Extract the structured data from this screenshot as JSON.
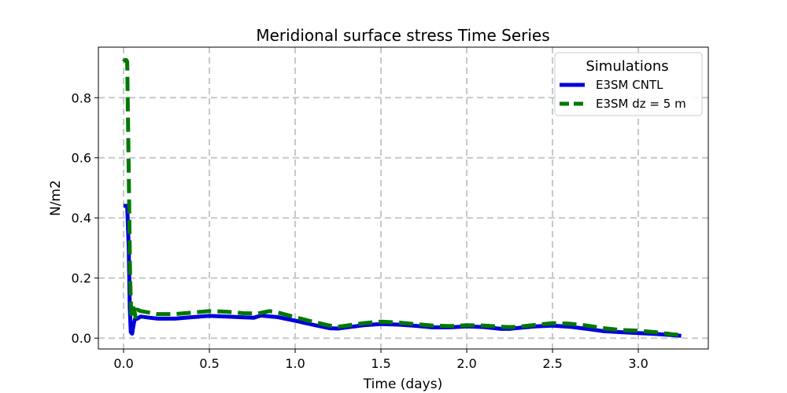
{
  "chart_data": {
    "type": "line",
    "title": "Meridional surface stress Time Series",
    "xlabel": "Time (days)",
    "ylabel": "N/m2",
    "xlim": [
      -0.147,
      3.408
    ],
    "ylim": [
      -0.036,
      0.968
    ],
    "xticks": [
      0.0,
      0.5,
      1.0,
      1.5,
      2.0,
      2.5,
      3.0
    ],
    "xtick_labels": [
      "0.0",
      "0.5",
      "1.0",
      "1.5",
      "2.0",
      "2.5",
      "3.0"
    ],
    "yticks": [
      0.0,
      0.2,
      0.4,
      0.6,
      0.8
    ],
    "ytick_labels": [
      "0.0",
      "0.2",
      "0.4",
      "0.6",
      "0.8"
    ],
    "grid": true,
    "legend": {
      "title": "Simulations",
      "position": "upper-right"
    },
    "series": [
      {
        "name": "E3SM CNTL",
        "color": "#0000dd",
        "style": "solid",
        "x": [
          0.0,
          0.021,
          0.03,
          0.036,
          0.042,
          0.05,
          0.06,
          0.07,
          0.08,
          0.1,
          0.15,
          0.2,
          0.3,
          0.4,
          0.5,
          0.6,
          0.7,
          0.76,
          0.8,
          0.9,
          1.0,
          1.1,
          1.2,
          1.25,
          1.3,
          1.4,
          1.5,
          1.6,
          1.7,
          1.8,
          1.9,
          2.0,
          2.1,
          2.2,
          2.25,
          2.3,
          2.4,
          2.5,
          2.6,
          2.7,
          2.8,
          2.9,
          3.0,
          3.1,
          3.2,
          3.25
        ],
        "values": [
          0.44,
          0.44,
          0.3,
          0.1,
          0.02,
          0.015,
          0.05,
          0.07,
          0.065,
          0.072,
          0.068,
          0.065,
          0.065,
          0.07,
          0.074,
          0.072,
          0.069,
          0.068,
          0.075,
          0.07,
          0.058,
          0.045,
          0.033,
          0.032,
          0.036,
          0.043,
          0.047,
          0.045,
          0.041,
          0.036,
          0.036,
          0.039,
          0.037,
          0.031,
          0.031,
          0.034,
          0.039,
          0.042,
          0.038,
          0.031,
          0.023,
          0.02,
          0.017,
          0.014,
          0.01,
          0.008
        ]
      },
      {
        "name": "E3SM dz = 5 m",
        "color": "#007800",
        "style": "dashed",
        "x": [
          0.0,
          0.008,
          0.016,
          0.021,
          0.03,
          0.038,
          0.045,
          0.06,
          0.07,
          0.08,
          0.1,
          0.15,
          0.2,
          0.3,
          0.4,
          0.5,
          0.6,
          0.7,
          0.78,
          0.85,
          0.9,
          1.0,
          1.1,
          1.2,
          1.25,
          1.3,
          1.4,
          1.5,
          1.6,
          1.7,
          1.8,
          1.9,
          2.0,
          2.1,
          2.2,
          2.25,
          2.3,
          2.4,
          2.5,
          2.6,
          2.7,
          2.8,
          2.9,
          3.0,
          3.1,
          3.2,
          3.25
        ],
        "values": [
          0.92,
          0.925,
          0.925,
          0.92,
          0.55,
          0.2,
          0.07,
          0.1,
          0.07,
          0.095,
          0.09,
          0.085,
          0.08,
          0.08,
          0.085,
          0.09,
          0.088,
          0.083,
          0.082,
          0.09,
          0.085,
          0.07,
          0.055,
          0.042,
          0.038,
          0.042,
          0.05,
          0.055,
          0.052,
          0.047,
          0.042,
          0.04,
          0.043,
          0.042,
          0.038,
          0.037,
          0.038,
          0.044,
          0.05,
          0.048,
          0.042,
          0.033,
          0.027,
          0.025,
          0.02,
          0.013,
          0.01
        ]
      }
    ]
  }
}
